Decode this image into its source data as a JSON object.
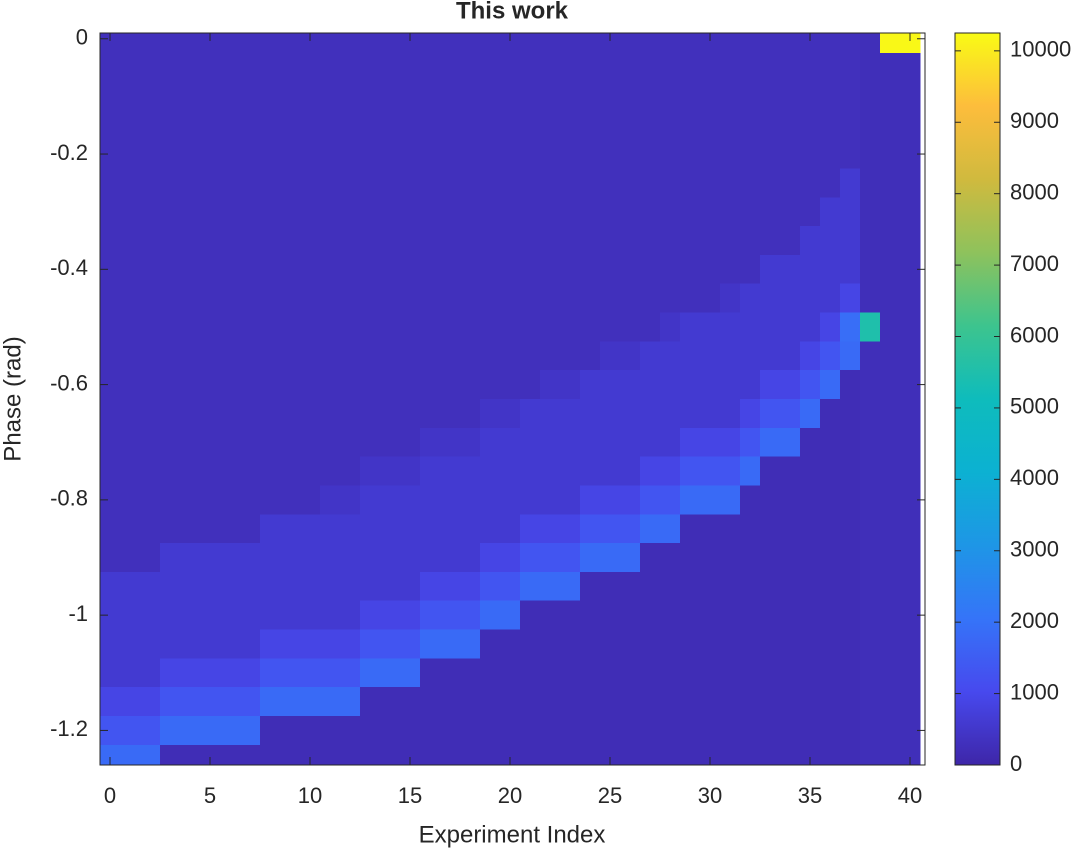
{
  "chart_data": {
    "type": "heatmap",
    "title": "This work",
    "x_label": "Experiment Index",
    "y_label": "Phase (rad)",
    "colormap": "parula",
    "x": [
      0,
      1,
      2,
      3,
      4,
      5,
      6,
      7,
      8,
      9,
      10,
      11,
      12,
      13,
      14,
      15,
      16,
      17,
      18,
      19,
      20,
      21,
      22,
      23,
      24,
      25,
      26,
      27,
      28,
      29,
      30,
      31,
      32,
      33,
      34,
      35,
      36,
      37,
      38,
      39,
      40
    ],
    "y": [
      0,
      -0.05,
      -0.1,
      -0.15,
      -0.2,
      -0.25,
      -0.3,
      -0.35,
      -0.4,
      -0.45,
      -0.5,
      -0.55,
      -0.6,
      -0.65,
      -0.7,
      -0.75,
      -0.8,
      -0.85,
      -0.9,
      -0.95,
      -1,
      -1.05,
      -1.1,
      -1.15,
      -1.2,
      -1.25
    ],
    "z": [
      [
        300,
        300,
        300,
        300,
        300,
        300,
        300,
        300,
        300,
        300,
        300,
        300,
        300,
        300,
        300,
        300,
        300,
        300,
        300,
        300,
        300,
        300,
        300,
        300,
        300,
        300,
        300,
        300,
        300,
        300,
        300,
        300,
        300,
        300,
        300,
        300,
        300,
        300,
        250,
        10200,
        10200
      ],
      [
        300,
        300,
        300,
        300,
        300,
        300,
        300,
        300,
        300,
        300,
        300,
        300,
        300,
        300,
        300,
        300,
        300,
        300,
        300,
        300,
        300,
        300,
        300,
        300,
        300,
        300,
        300,
        300,
        300,
        300,
        300,
        300,
        300,
        300,
        300,
        300,
        300,
        300,
        250,
        250,
        250
      ],
      [
        300,
        300,
        300,
        300,
        300,
        300,
        300,
        300,
        300,
        300,
        300,
        300,
        300,
        300,
        300,
        300,
        300,
        300,
        300,
        300,
        300,
        300,
        300,
        300,
        300,
        300,
        300,
        300,
        300,
        300,
        300,
        300,
        300,
        300,
        300,
        300,
        300,
        300,
        250,
        250,
        250
      ],
      [
        300,
        300,
        300,
        300,
        300,
        300,
        300,
        300,
        300,
        300,
        300,
        300,
        300,
        300,
        300,
        300,
        300,
        300,
        300,
        300,
        300,
        300,
        300,
        300,
        300,
        300,
        300,
        300,
        300,
        300,
        300,
        300,
        300,
        300,
        300,
        300,
        300,
        300,
        250,
        250,
        250
      ],
      [
        300,
        300,
        300,
        300,
        300,
        300,
        300,
        300,
        300,
        300,
        300,
        300,
        300,
        300,
        300,
        300,
        300,
        300,
        300,
        300,
        300,
        300,
        300,
        300,
        300,
        300,
        300,
        300,
        300,
        300,
        300,
        300,
        300,
        300,
        300,
        300,
        300,
        300,
        250,
        250,
        250
      ],
      [
        300,
        300,
        300,
        300,
        300,
        300,
        300,
        300,
        300,
        300,
        300,
        300,
        300,
        300,
        300,
        300,
        300,
        300,
        300,
        300,
        300,
        300,
        300,
        300,
        300,
        300,
        300,
        300,
        300,
        300,
        300,
        300,
        300,
        300,
        300,
        300,
        300,
        600,
        250,
        250,
        250
      ],
      [
        300,
        300,
        300,
        300,
        300,
        300,
        300,
        300,
        300,
        300,
        300,
        300,
        300,
        300,
        300,
        300,
        300,
        300,
        300,
        300,
        300,
        300,
        300,
        300,
        300,
        300,
        300,
        300,
        300,
        300,
        300,
        300,
        300,
        300,
        300,
        300,
        600,
        600,
        250,
        250,
        250
      ],
      [
        300,
        300,
        300,
        300,
        300,
        300,
        300,
        300,
        300,
        300,
        300,
        300,
        300,
        300,
        300,
        300,
        300,
        300,
        300,
        300,
        300,
        300,
        300,
        300,
        300,
        300,
        300,
        300,
        300,
        300,
        300,
        300,
        300,
        300,
        300,
        600,
        600,
        600,
        250,
        250,
        250
      ],
      [
        300,
        300,
        300,
        300,
        300,
        300,
        300,
        300,
        300,
        300,
        300,
        300,
        300,
        300,
        300,
        300,
        300,
        300,
        300,
        300,
        300,
        300,
        300,
        300,
        300,
        300,
        300,
        300,
        300,
        300,
        300,
        300,
        300,
        600,
        600,
        600,
        600,
        600,
        250,
        250,
        250
      ],
      [
        300,
        300,
        300,
        300,
        300,
        300,
        300,
        300,
        300,
        300,
        300,
        300,
        300,
        300,
        300,
        300,
        300,
        300,
        300,
        300,
        300,
        300,
        300,
        300,
        300,
        300,
        300,
        300,
        300,
        300,
        300,
        450,
        600,
        600,
        600,
        600,
        600,
        900,
        250,
        250,
        250
      ],
      [
        300,
        300,
        300,
        300,
        300,
        300,
        300,
        300,
        300,
        300,
        300,
        300,
        300,
        300,
        300,
        300,
        300,
        300,
        300,
        300,
        300,
        300,
        300,
        300,
        300,
        300,
        300,
        300,
        450,
        600,
        600,
        600,
        600,
        600,
        600,
        600,
        900,
        1900,
        5500,
        250,
        250
      ],
      [
        300,
        300,
        300,
        300,
        300,
        300,
        300,
        300,
        300,
        300,
        300,
        300,
        300,
        300,
        300,
        300,
        300,
        300,
        300,
        300,
        300,
        300,
        300,
        300,
        300,
        450,
        450,
        600,
        600,
        600,
        600,
        600,
        600,
        600,
        600,
        900,
        1300,
        1800,
        250,
        250,
        250
      ],
      [
        300,
        300,
        300,
        300,
        300,
        300,
        300,
        300,
        300,
        300,
        300,
        300,
        300,
        300,
        300,
        300,
        300,
        300,
        300,
        300,
        300,
        300,
        450,
        450,
        600,
        600,
        600,
        600,
        600,
        600,
        600,
        600,
        600,
        900,
        900,
        1300,
        1800,
        200,
        250,
        250,
        250
      ],
      [
        300,
        300,
        300,
        300,
        300,
        300,
        300,
        300,
        300,
        300,
        300,
        300,
        300,
        300,
        300,
        300,
        300,
        300,
        300,
        450,
        450,
        600,
        600,
        600,
        600,
        600,
        600,
        600,
        600,
        600,
        600,
        600,
        900,
        1300,
        1300,
        1800,
        200,
        200,
        250,
        250,
        250
      ],
      [
        300,
        300,
        300,
        300,
        300,
        300,
        300,
        300,
        300,
        300,
        300,
        300,
        300,
        300,
        300,
        300,
        450,
        450,
        450,
        600,
        600,
        600,
        600,
        600,
        600,
        600,
        600,
        600,
        600,
        900,
        900,
        900,
        1300,
        1800,
        1800,
        200,
        200,
        200,
        250,
        250,
        250
      ],
      [
        300,
        300,
        300,
        300,
        300,
        300,
        300,
        300,
        300,
        300,
        300,
        300,
        300,
        450,
        450,
        450,
        600,
        600,
        600,
        600,
        600,
        600,
        600,
        600,
        600,
        600,
        600,
        900,
        900,
        1300,
        1300,
        1300,
        1800,
        200,
        200,
        200,
        200,
        200,
        250,
        250,
        250
      ],
      [
        300,
        300,
        300,
        300,
        300,
        300,
        300,
        300,
        300,
        300,
        300,
        450,
        450,
        600,
        600,
        600,
        600,
        600,
        600,
        600,
        600,
        600,
        600,
        600,
        900,
        900,
        900,
        1300,
        1300,
        1800,
        1800,
        1800,
        200,
        200,
        200,
        200,
        200,
        200,
        250,
        250,
        250
      ],
      [
        300,
        300,
        300,
        300,
        300,
        300,
        300,
        300,
        600,
        600,
        600,
        600,
        600,
        600,
        600,
        600,
        600,
        600,
        600,
        600,
        600,
        900,
        900,
        900,
        1300,
        1300,
        1300,
        1800,
        1800,
        200,
        200,
        200,
        200,
        200,
        200,
        200,
        200,
        200,
        250,
        250,
        250
      ],
      [
        300,
        300,
        300,
        600,
        600,
        600,
        600,
        600,
        600,
        600,
        600,
        600,
        600,
        600,
        600,
        600,
        600,
        600,
        600,
        900,
        900,
        1300,
        1300,
        1300,
        1800,
        1800,
        1800,
        200,
        200,
        200,
        200,
        200,
        200,
        200,
        200,
        200,
        200,
        200,
        250,
        250,
        250
      ],
      [
        600,
        600,
        600,
        600,
        600,
        600,
        600,
        600,
        600,
        600,
        600,
        600,
        600,
        600,
        600,
        600,
        900,
        900,
        900,
        1300,
        1300,
        1800,
        1800,
        1800,
        200,
        200,
        200,
        200,
        200,
        200,
        200,
        200,
        200,
        200,
        200,
        200,
        200,
        200,
        250,
        250,
        250
      ],
      [
        600,
        600,
        600,
        600,
        600,
        600,
        600,
        600,
        600,
        600,
        600,
        600,
        600,
        900,
        900,
        900,
        1300,
        1300,
        1300,
        1800,
        1800,
        200,
        200,
        200,
        200,
        200,
        200,
        200,
        200,
        200,
        200,
        200,
        200,
        200,
        200,
        200,
        200,
        200,
        250,
        250,
        250
      ],
      [
        600,
        600,
        600,
        600,
        600,
        600,
        600,
        600,
        900,
        900,
        900,
        900,
        900,
        1300,
        1300,
        1300,
        1800,
        1800,
        1800,
        200,
        200,
        200,
        200,
        200,
        200,
        200,
        200,
        200,
        200,
        200,
        200,
        200,
        200,
        200,
        200,
        200,
        200,
        200,
        250,
        250,
        250
      ],
      [
        600,
        600,
        600,
        900,
        900,
        900,
        900,
        900,
        1300,
        1300,
        1300,
        1300,
        1300,
        1800,
        1800,
        1800,
        200,
        200,
        200,
        200,
        200,
        200,
        200,
        200,
        200,
        200,
        200,
        200,
        200,
        200,
        200,
        200,
        200,
        200,
        200,
        200,
        200,
        200,
        250,
        250,
        250
      ],
      [
        900,
        900,
        900,
        1300,
        1300,
        1300,
        1300,
        1300,
        1800,
        1800,
        1800,
        1800,
        1800,
        200,
        200,
        200,
        200,
        200,
        200,
        200,
        200,
        200,
        200,
        200,
        200,
        200,
        200,
        200,
        200,
        200,
        200,
        200,
        200,
        200,
        200,
        200,
        200,
        200,
        250,
        250,
        250
      ],
      [
        1300,
        1300,
        1300,
        1800,
        1800,
        1800,
        1800,
        1800,
        200,
        200,
        200,
        200,
        200,
        200,
        200,
        200,
        200,
        200,
        200,
        200,
        200,
        200,
        200,
        200,
        200,
        200,
        200,
        200,
        200,
        200,
        200,
        200,
        200,
        200,
        200,
        200,
        200,
        200,
        250,
        250,
        250
      ],
      [
        1800,
        1800,
        1800,
        200,
        200,
        200,
        200,
        200,
        200,
        200,
        200,
        200,
        200,
        200,
        200,
        200,
        200,
        200,
        200,
        200,
        200,
        200,
        200,
        200,
        200,
        200,
        200,
        200,
        200,
        200,
        200,
        200,
        200,
        200,
        200,
        200,
        200,
        200,
        250,
        250,
        250
      ]
    ],
    "xlim": [
      -0.5,
      40.75
    ],
    "xticks": [
      0,
      5,
      10,
      15,
      20,
      25,
      30,
      35,
      40
    ],
    "ylim": [
      -1.26,
      0.01
    ],
    "yticks": [
      -1.2,
      -1,
      -0.8,
      -0.6,
      -0.4,
      -0.2,
      0
    ],
    "clim": [
      0,
      10250
    ],
    "cticks": [
      0,
      1000,
      2000,
      3000,
      4000,
      5000,
      6000,
      7000,
      8000,
      9000,
      10000
    ]
  }
}
